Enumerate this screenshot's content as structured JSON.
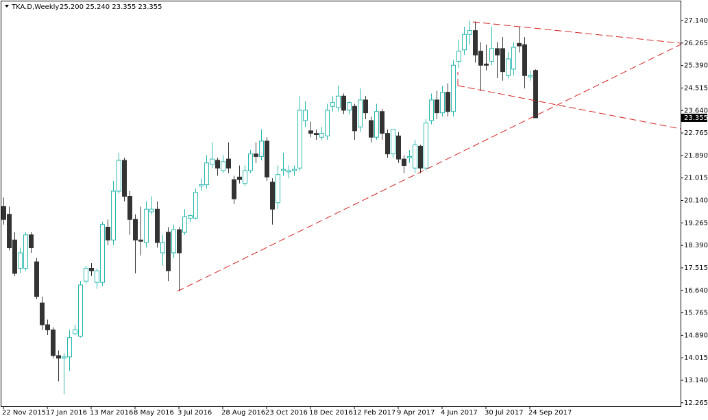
{
  "chart_data": {
    "type": "candlestick",
    "title": "TKA.D,Weekly",
    "ohlc_text": "25.200 25.240 23.355 23.355",
    "bull_color": "#26b8b0",
    "bear_color": "#333333",
    "categories": [
      "22 Nov 2015",
      null,
      null,
      null,
      null,
      null,
      null,
      null,
      "17 Jan 2016",
      null,
      null,
      null,
      null,
      null,
      null,
      null,
      "13 Mar 2016",
      null,
      null,
      null,
      null,
      null,
      null,
      null,
      "8 May 2016",
      null,
      null,
      null,
      null,
      null,
      null,
      null,
      "3 Jul 2016",
      null,
      null,
      null,
      null,
      null,
      null,
      null,
      "28 Aug 2016",
      null,
      null,
      null,
      null,
      null,
      null,
      null,
      "23 Oct 2016",
      null,
      null,
      null,
      null,
      null,
      null,
      null,
      "18 Dec 2016",
      null,
      null,
      null,
      null,
      null,
      null,
      null,
      "12 Feb 2017",
      null,
      null,
      null,
      null,
      null,
      null,
      null,
      "9 Apr 2017",
      null,
      null,
      null,
      null,
      null,
      null,
      null,
      "4 Jun 2017",
      null,
      null,
      null,
      null,
      null,
      null,
      null,
      "30 Jul 2017",
      null,
      null,
      null,
      null,
      null,
      null,
      null,
      "24 Sep 2017",
      null
    ],
    "open": [
      19.9,
      19.6,
      18.6,
      17.5,
      17.5,
      18.8,
      17.75,
      16.15,
      15.3,
      15.1,
      14.1,
      14.0,
      14.05,
      14.95,
      14.85,
      17.0,
      17.5,
      16.95,
      16.95,
      19.1,
      18.6,
      20.5,
      21.7,
      20.3,
      19.4,
      18.6,
      18.5,
      19.7,
      19.8,
      18.1,
      18.9,
      18.1,
      19.0,
      18.9,
      19.45,
      19.45,
      20.7,
      20.75,
      21.55,
      21.7,
      21.3,
      21.75,
      20.95,
      21.05,
      20.8,
      21.3,
      21.95,
      21.85,
      22.45,
      20.85,
      20.05,
      21.3,
      21.25,
      21.3,
      21.4,
      23.25,
      22.85,
      22.75,
      22.6,
      22.65,
      23.8,
      23.75,
      24.2,
      23.65,
      23.8,
      23.0,
      24.05,
      23.25,
      22.6,
      23.6,
      22.75,
      21.95,
      22.65,
      21.75,
      21.8,
      21.4,
      22.25,
      21.4,
      23.25,
      24.05,
      23.55,
      24.35,
      23.6,
      25.55,
      26.0,
      26.6,
      26.75,
      25.95,
      25.45,
      25.55,
      26.05,
      26.05,
      25.0,
      25.25,
      26.25,
      26.2,
      24.95,
      25.2
    ],
    "high": [
      20.25,
      19.9,
      18.9,
      18.3,
      18.9,
      18.9,
      17.9,
      16.4,
      15.5,
      15.2,
      14.3,
      14.2,
      15.1,
      15.3,
      17.0,
      17.6,
      17.7,
      17.5,
      19.3,
      19.4,
      20.9,
      22.0,
      21.8,
      20.5,
      19.6,
      19.9,
      20.1,
      20.3,
      20.1,
      18.8,
      19.1,
      19.2,
      19.1,
      19.8,
      19.6,
      20.6,
      21.0,
      21.9,
      22.4,
      21.8,
      21.9,
      22.4,
      21.1,
      21.5,
      21.5,
      22.1,
      22.4,
      22.9,
      22.6,
      21.0,
      21.5,
      22.0,
      21.5,
      21.5,
      24.2,
      24.0,
      23.2,
      22.9,
      23.0,
      23.9,
      24.2,
      24.6,
      24.3,
      24.0,
      23.9,
      24.5,
      24.2,
      23.4,
      23.9,
      23.7,
      22.9,
      22.9,
      22.8,
      21.9,
      22.1,
      22.5,
      22.3,
      23.3,
      24.3,
      24.4,
      24.6,
      24.7,
      25.6,
      26.4,
      26.9,
      27.14,
      27.1,
      26.3,
      26.2,
      26.9,
      26.3,
      26.5,
      25.9,
      26.3,
      26.9,
      26.5,
      25.2,
      25.24
    ],
    "low": [
      19.2,
      18.2,
      17.2,
      17.3,
      17.4,
      18.1,
      16.3,
      15.1,
      14.9,
      14.0,
      13.1,
      12.6,
      13.5,
      14.9,
      14.8,
      16.9,
      17.2,
      16.7,
      16.8,
      18.4,
      18.4,
      20.4,
      20.1,
      18.8,
      17.3,
      18.0,
      18.3,
      19.6,
      18.3,
      17.6,
      17.0,
      17.9,
      16.6,
      18.8,
      19.3,
      19.4,
      20.5,
      20.6,
      21.4,
      21.1,
      21.2,
      21.2,
      20.0,
      20.8,
      20.7,
      21.2,
      21.6,
      21.7,
      20.9,
      19.2,
      19.8,
      21.1,
      21.0,
      21.1,
      21.3,
      23.0,
      22.6,
      22.5,
      22.5,
      22.5,
      23.6,
      23.6,
      23.5,
      23.5,
      22.5,
      22.8,
      23.3,
      22.4,
      22.5,
      22.5,
      21.8,
      21.8,
      21.6,
      21.2,
      21.6,
      21.2,
      21.2,
      21.3,
      23.1,
      23.3,
      23.4,
      23.4,
      23.4,
      25.3,
      25.8,
      26.2,
      25.5,
      24.4,
      25.2,
      25.4,
      24.9,
      24.8,
      24.9,
      25.0,
      25.9,
      24.5,
      24.8,
      23.355
    ],
    "close": [
      19.4,
      18.3,
      17.3,
      18.1,
      18.8,
      18.3,
      16.4,
      15.3,
      15.1,
      14.1,
      14.0,
      14.05,
      14.8,
      15.1,
      16.85,
      17.5,
      17.4,
      17.4,
      19.2,
      18.6,
      20.5,
      21.7,
      20.3,
      19.4,
      18.6,
      18.55,
      19.8,
      19.8,
      18.5,
      18.5,
      17.4,
      19.0,
      18.1,
      19.5,
      19.55,
      20.45,
      20.75,
      21.6,
      21.75,
      21.4,
      21.65,
      21.4,
      20.2,
      20.95,
      21.3,
      21.95,
      21.85,
      22.45,
      21.05,
      19.8,
      21.15,
      21.35,
      21.3,
      21.35,
      23.65,
      23.65,
      22.75,
      22.7,
      22.75,
      23.65,
      23.95,
      24.2,
      23.65,
      23.95,
      22.85,
      24.05,
      23.55,
      22.6,
      23.6,
      22.75,
      21.95,
      22.9,
      21.75,
      21.5,
      21.85,
      22.3,
      21.4,
      23.15,
      24.05,
      23.55,
      24.35,
      23.6,
      25.4,
      25.95,
      26.6,
      26.75,
      25.8,
      25.4,
      25.4,
      26.05,
      25.8,
      25.15,
      25.65,
      26.1,
      26.15,
      25.0,
      25.0,
      23.355
    ],
    "last_price": {
      "value": 23.355,
      "label": "23.355"
    },
    "ylim": [
      12.127,
      27.887
    ],
    "yticks": [
      {
        "value": 12.265,
        "label": "12.265"
      },
      {
        "value": 13.14,
        "label": "13.140"
      },
      {
        "value": 14.015,
        "label": "14.015"
      },
      {
        "value": 14.89,
        "label": "14.890"
      },
      {
        "value": 15.765,
        "label": "15.765"
      },
      {
        "value": 16.64,
        "label": "16.640"
      },
      {
        "value": 17.515,
        "label": "17.515"
      },
      {
        "value": 18.39,
        "label": "18.390"
      },
      {
        "value": 19.265,
        "label": "19.265"
      },
      {
        "value": 20.14,
        "label": "20.140"
      },
      {
        "value": 21.015,
        "label": "21.015"
      },
      {
        "value": 21.89,
        "label": "21.890"
      },
      {
        "value": 22.765,
        "label": "22.765"
      },
      {
        "value": 23.64,
        "label": "23.640"
      },
      {
        "value": 24.515,
        "label": "24.515"
      },
      {
        "value": 25.39,
        "label": "25.390"
      },
      {
        "value": 26.265,
        "label": "26.265"
      },
      {
        "value": 27.14,
        "label": "27.140"
      }
    ]
  }
}
